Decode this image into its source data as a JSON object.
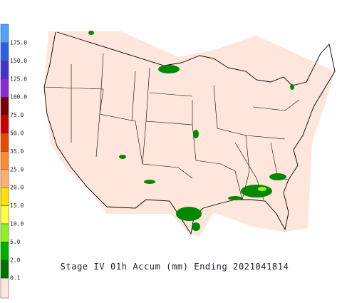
{
  "title": "Stage IV 01h Accum (mm) Ending 2021041814",
  "legend": {
    "labels": [
      "175.0",
      "150.0",
      "125.0",
      "100.0",
      "75.0",
      "50.0",
      "35.0",
      "25.0",
      "20.0",
      "15.0",
      "10.0",
      "5.0",
      "2.0",
      "0.1"
    ],
    "colors": [
      "#4fa0ff",
      "#2b5fe0",
      "#4a2fd0",
      "#8a2bd8",
      "#7a0000",
      "#c80000",
      "#e84800",
      "#ff8a30",
      "#ffb070",
      "#ffe000",
      "#ffff40",
      "#90f020",
      "#00b000",
      "#007000",
      "#ffe6dc"
    ]
  }
}
